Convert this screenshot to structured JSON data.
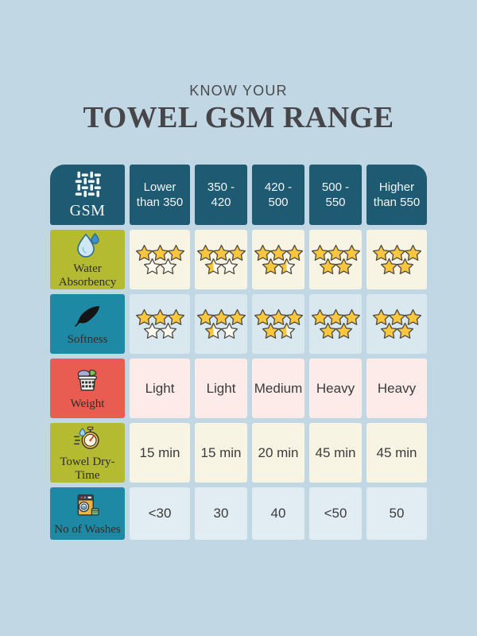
{
  "colors": {
    "page_bg": "#c1d7e3",
    "header_bg": "#1e5a72",
    "header_text": "#f4f7f8",
    "title_text": "#46454a",
    "label_text": "#2e2d27",
    "cell_text": "#3b3b3b",
    "star_fill": "#f9c63d",
    "star_empty": "#fffdf2",
    "star_stroke": "#4f4c45"
  },
  "title": {
    "kicker": "KNOW YOUR",
    "main": "TOWEL GSM RANGE"
  },
  "table": {
    "header": {
      "label": "GSM",
      "icon": "fabric-weave-icon",
      "columns": [
        "Lower than 350",
        "350 - 420",
        "420 - 500",
        "500 - 550",
        "Higher than 550"
      ]
    },
    "rows": [
      {
        "id": "water-absorbency",
        "label": "Water Absorbency",
        "icon": "water-drop-icon",
        "type": "stars",
        "ratings": [
          3,
          3.5,
          4.5,
          5,
          5
        ],
        "label_bg": "#b4bb31",
        "cell_bg": "#f7f4e4"
      },
      {
        "id": "softness",
        "label": "Softness",
        "icon": "feather-icon",
        "type": "stars",
        "ratings": [
          3,
          3.5,
          4.5,
          5,
          5
        ],
        "label_bg": "#1e89a5",
        "cell_bg": "#d9e7ef"
      },
      {
        "id": "weight",
        "label": "Weight",
        "icon": "laundry-basket-icon",
        "type": "text",
        "values": [
          "Light",
          "Light",
          "Medium",
          "Heavy",
          "Heavy"
        ],
        "label_bg": "#e95c51",
        "cell_bg": "#fcebe8"
      },
      {
        "id": "towel-dry-time",
        "label": "Towel Dry-Time",
        "icon": "stopwatch-icon",
        "type": "text",
        "values": [
          "15 min",
          "15 min",
          "20 min",
          "45 min",
          "45 min"
        ],
        "label_bg": "#b4bb31",
        "cell_bg": "#f7f4e4"
      },
      {
        "id": "no-of-washes",
        "label": "No of Washes",
        "icon": "washing-machine-icon",
        "type": "text",
        "values": [
          "<30",
          "30",
          "40",
          "<50",
          "50"
        ],
        "label_bg": "#1e89a5",
        "cell_bg": "#e2edf3"
      }
    ]
  },
  "chart_data": {
    "type": "table",
    "title": "TOWEL GSM RANGE",
    "subtitle": "KNOW YOUR",
    "columns": [
      "Lower than 350",
      "350 - 420",
      "420 - 500",
      "500 - 550",
      "Higher than 550"
    ],
    "rows": [
      {
        "label": "Water Absorbency",
        "unit": "stars of 5",
        "values": [
          3,
          3.5,
          4.5,
          5,
          5
        ]
      },
      {
        "label": "Softness",
        "unit": "stars of 5",
        "values": [
          3,
          3.5,
          4.5,
          5,
          5
        ]
      },
      {
        "label": "Weight",
        "values": [
          "Light",
          "Light",
          "Medium",
          "Heavy",
          "Heavy"
        ]
      },
      {
        "label": "Towel Dry-Time",
        "values": [
          "15 min",
          "15 min",
          "20 min",
          "45 min",
          "45 min"
        ]
      },
      {
        "label": "No of Washes",
        "values": [
          "<30",
          "30",
          "40",
          "<50",
          "50"
        ]
      }
    ]
  }
}
